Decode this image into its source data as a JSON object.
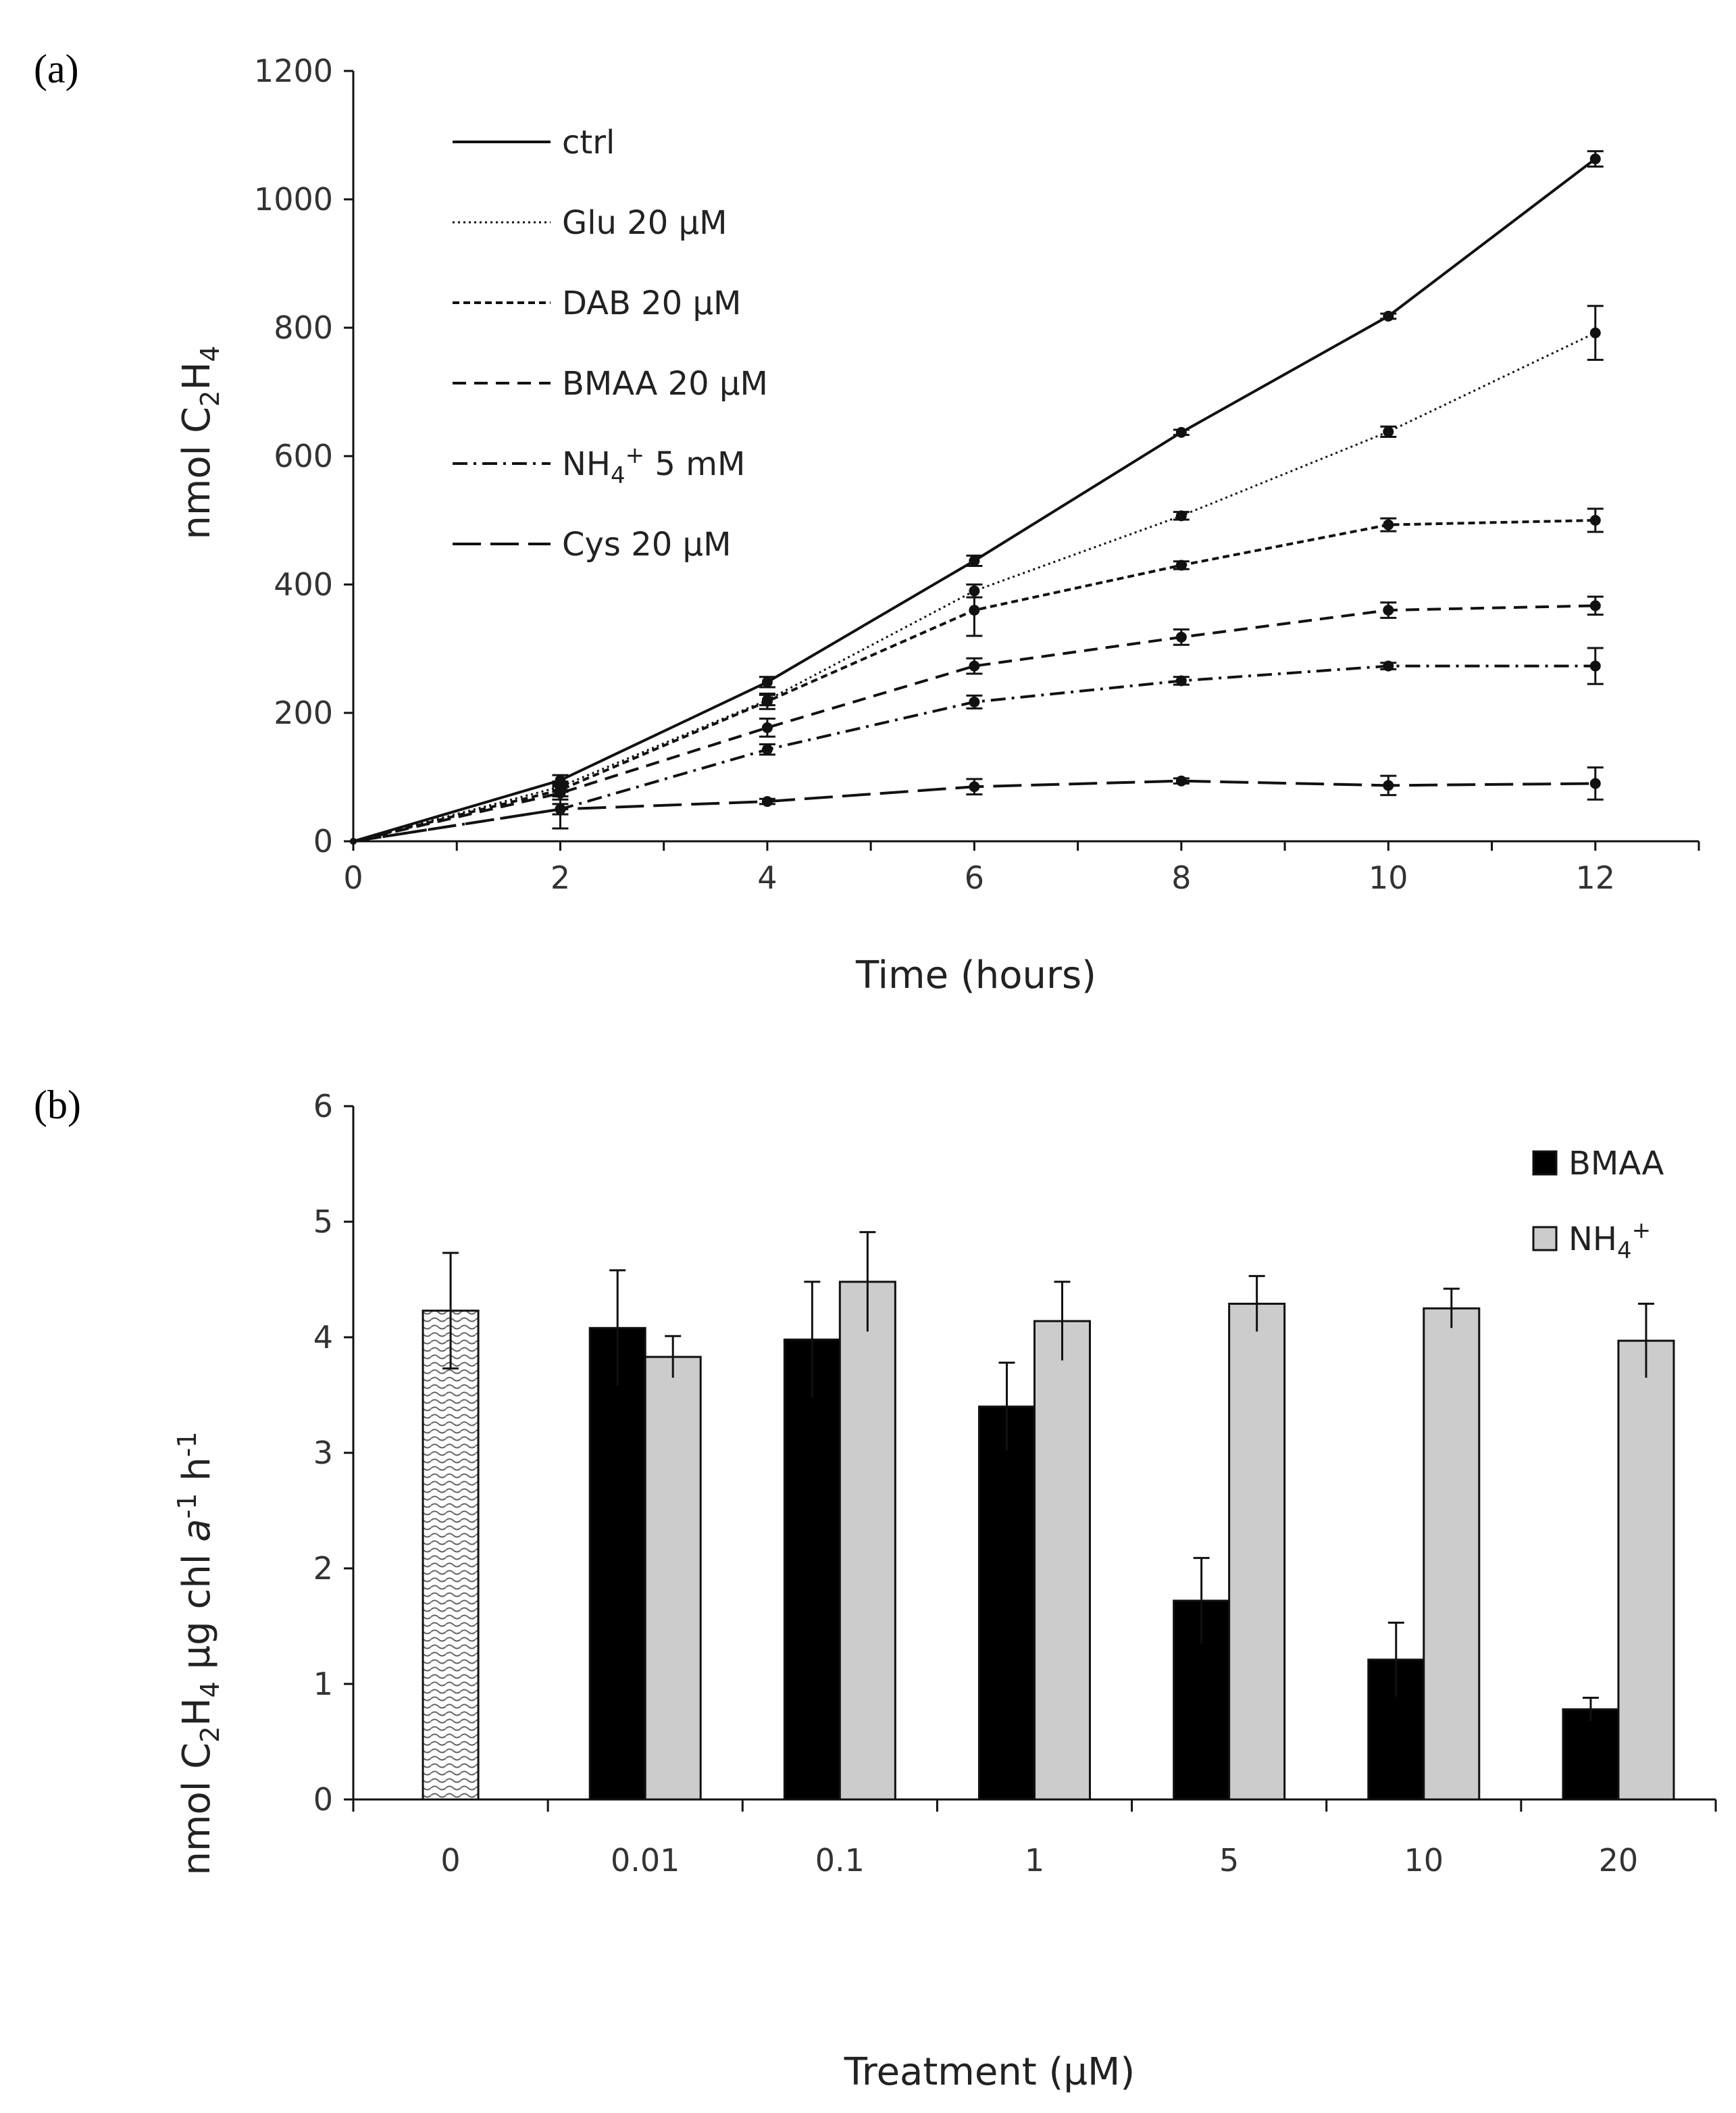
{
  "figure": {
    "panel_a_label": "(a)",
    "panel_b_label": "(b)",
    "colors": {
      "black_bar": "#000000",
      "gray_bar": "#cccccc",
      "axis": "#111111",
      "pattern": "#666666"
    }
  },
  "chart_data": [
    {
      "panel": "(a)",
      "type": "line",
      "title": "",
      "xlabel": "Time (hours)",
      "ylabel_main": "nmol  C",
      "ylabel_sub1": "2",
      "ylabel_mid": "H",
      "ylabel_sub2": "4",
      "xlim": [
        0,
        13
      ],
      "ylim": [
        0,
        1200
      ],
      "xticks": [
        0,
        2,
        4,
        6,
        8,
        10,
        12
      ],
      "yticks": [
        0,
        200,
        400,
        600,
        800,
        1000,
        1200
      ],
      "x": [
        0,
        2,
        4,
        6,
        8,
        10,
        12
      ],
      "legend_position": "top-left",
      "series": [
        {
          "name": "ctrl",
          "legend_label": "ctrl",
          "dash": "solid",
          "values": [
            0,
            95,
            248,
            437,
            637,
            818,
            1063
          ],
          "errors": [
            0,
            8,
            8,
            8,
            4,
            4,
            12
          ]
        },
        {
          "name": "Glu 20 µM",
          "legend_label": "Glu 20 µM",
          "dash": "dotted",
          "values": [
            0,
            85,
            220,
            390,
            507,
            638,
            792
          ],
          "errors": [
            0,
            8,
            8,
            10,
            6,
            8,
            42
          ]
        },
        {
          "name": "DAB 20 µM",
          "legend_label": "DAB 20 µM",
          "dash": "short-dash",
          "values": [
            0,
            80,
            218,
            360,
            430,
            493,
            500
          ],
          "errors": [
            0,
            10,
            12,
            40,
            6,
            10,
            18
          ]
        },
        {
          "name": "BMAA 20 µM",
          "legend_label": "BMAA 20 µM",
          "dash": "medium-dash",
          "values": [
            0,
            75,
            177,
            273,
            318,
            360,
            367
          ],
          "errors": [
            0,
            10,
            14,
            12,
            12,
            12,
            14
          ]
        },
        {
          "name": "NH4+ 5 mM",
          "legend_label_main": "NH",
          "legend_label_sub": "4",
          "legend_label_sup": "+",
          "legend_label_tail": " 5 mM",
          "dash": "dash-dot",
          "values": [
            0,
            50,
            143,
            217,
            250,
            273,
            273
          ],
          "errors": [
            0,
            8,
            8,
            10,
            6,
            5,
            28
          ]
        },
        {
          "name": "Cys 20 µM",
          "legend_label": "Cys 20 µM",
          "dash": "long-dash",
          "values": [
            0,
            50,
            62,
            85,
            94,
            87,
            90
          ],
          "errors": [
            0,
            30,
            4,
            12,
            4,
            15,
            25
          ]
        }
      ]
    },
    {
      "panel": "(b)",
      "type": "bar",
      "title": "",
      "xlabel": "Treatment (µM)",
      "ylabel_main": "nmol C",
      "ylabel_sub1": "2",
      "ylabel_mid1": "H",
      "ylabel_sub2": "4",
      "ylabel_mid2": " µg chl ",
      "ylabel_italic": "a",
      "ylabel_sup1": "-1",
      "ylabel_mid3": " h",
      "ylabel_sup2": "-1",
      "ylim": [
        0,
        6
      ],
      "yticks": [
        0,
        1,
        2,
        3,
        4,
        5,
        6
      ],
      "categories": [
        "0",
        "0.01",
        "0.1",
        "1",
        "5",
        "10",
        "20"
      ],
      "legend_position": "top-right",
      "control": {
        "category": "0",
        "value": 4.23,
        "error": 0.5,
        "pattern": "wavy-hatch"
      },
      "series": [
        {
          "name": "BMAA",
          "legend_label": "BMAA",
          "color": "#000000",
          "values": [
            null,
            4.08,
            3.98,
            3.4,
            1.72,
            1.21,
            0.78
          ],
          "errors": [
            null,
            0.5,
            0.5,
            0.38,
            0.37,
            0.32,
            0.1
          ]
        },
        {
          "name": "NH4+",
          "legend_label_main": "NH",
          "legend_label_sub": "4",
          "legend_label_sup": "+",
          "color": "#cccccc",
          "values": [
            null,
            3.83,
            4.48,
            4.14,
            4.29,
            4.25,
            3.97
          ],
          "errors": [
            null,
            0.18,
            0.43,
            0.34,
            0.24,
            0.17,
            0.32
          ]
        }
      ]
    }
  ]
}
